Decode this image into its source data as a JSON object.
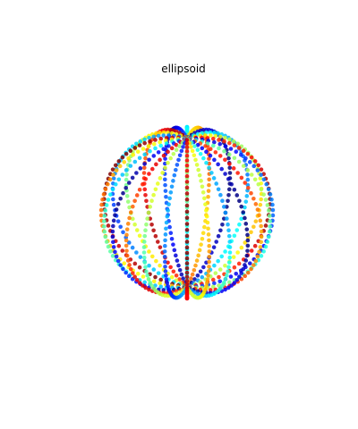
{
  "chart_data": {
    "type": "scatter",
    "title": "ellipsoid",
    "projection": "3d",
    "axes_visible": false,
    "grid": false,
    "colormap": "jet",
    "surface": "ellipsoid",
    "semi_axes": {
      "a": 1.0,
      "b": 1.0,
      "c": 1.0
    },
    "parametric_grid": {
      "meridians": 24,
      "points_per_meridian": 44
    },
    "view": {
      "elevation_deg": 30,
      "azimuth_deg": -60
    },
    "marker_alpha": 0.85
  }
}
